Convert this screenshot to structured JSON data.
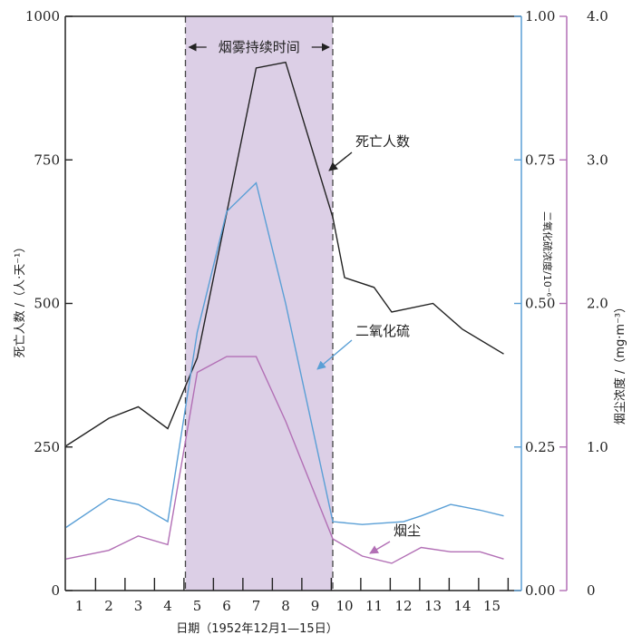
{
  "chart_data": {
    "type": "line",
    "x": [
      1,
      2,
      3,
      4,
      5,
      6,
      7,
      8,
      9,
      10,
      11,
      12,
      13,
      14,
      15
    ],
    "xlabel": "日期（1952年12月1—15日）",
    "y_left_label": "死亡人数 /（人·天⁻¹）",
    "y_right1_label": "二氧化硫浓度/10⁻⁶",
    "y_right2_label": "烟尘浓度 /（mg·m⁻³）",
    "y_left_ticks": [
      "0",
      "250",
      "500",
      "750",
      "1000"
    ],
    "y_right1_ticks": [
      "0.00",
      "0.25",
      "0.50",
      "0.75",
      "1.00"
    ],
    "y_right2_ticks": [
      "0",
      "1.0",
      "2.0",
      "3.0",
      "4.0"
    ],
    "y_left_range": [
      0,
      1000
    ],
    "y_right1_range": [
      0,
      1.0
    ],
    "y_right2_range": [
      0,
      4.0
    ],
    "shaded_period": {
      "from": 4.6,
      "to": 9.6,
      "label": "烟雾持续时间",
      "color": "#dccfe6"
    },
    "series": [
      {
        "name": "死亡人数",
        "axis": "left",
        "color": "#222222",
        "x": [
          0.55,
          2.0,
          3.0,
          4.0,
          5.0,
          7.0,
          8.0,
          9.6,
          10.0,
          11.0,
          11.6,
          13.0,
          14.0,
          15.4
        ],
        "values": [
          252,
          300,
          320,
          282,
          405,
          910,
          920,
          650,
          545,
          528,
          485,
          500,
          455,
          412
        ]
      },
      {
        "name": "二氧化硫",
        "axis": "right1",
        "color": "#5a9fd6",
        "x": [
          0.55,
          2.0,
          3.0,
          4.0,
          5.0,
          6.0,
          7.0,
          8.0,
          9.6,
          10.6,
          12.0,
          12.6,
          13.6,
          14.6,
          15.4
        ],
        "values": [
          0.11,
          0.16,
          0.15,
          0.12,
          0.45,
          0.66,
          0.71,
          0.5,
          0.12,
          0.115,
          0.12,
          0.13,
          0.15,
          0.14,
          0.13
        ]
      },
      {
        "name": "烟尘",
        "axis": "right2",
        "color": "#b26fb5",
        "x": [
          0.55,
          2.0,
          3.0,
          4.0,
          5.0,
          6.0,
          7.0,
          8.0,
          9.6,
          10.6,
          11.6,
          12.6,
          13.6,
          14.6,
          15.4
        ],
        "values": [
          0.22,
          0.28,
          0.38,
          0.32,
          1.52,
          1.63,
          1.63,
          1.18,
          0.36,
          0.24,
          0.19,
          0.3,
          0.27,
          0.27,
          0.22
        ]
      }
    ],
    "annotations": [
      {
        "text": "死亡人数",
        "series": "死亡人数"
      },
      {
        "text": "二氧化硫",
        "series": "二氧化硫"
      },
      {
        "text": "烟尘",
        "series": "烟尘"
      }
    ]
  }
}
